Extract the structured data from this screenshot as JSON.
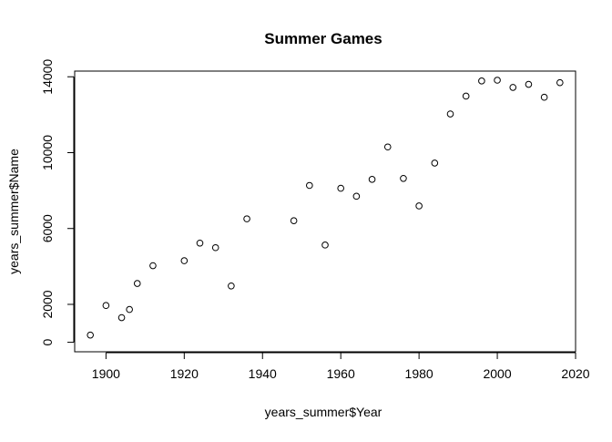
{
  "chart_data": {
    "type": "scatter",
    "title": "Summer Games",
    "xlabel": "years_summer$Year",
    "ylabel": "years_summer$Name",
    "xlim": [
      1892,
      2020
    ],
    "ylim": [
      -500,
      14300
    ],
    "x_ticks": [
      1900,
      1920,
      1940,
      1960,
      1980,
      2000,
      2020
    ],
    "y_ticks": [
      0,
      2000,
      6000,
      10000,
      14000
    ],
    "grid": false,
    "marker": "open-circle",
    "series": [
      {
        "points": [
          {
            "x": 1896,
            "y": 380
          },
          {
            "x": 1900,
            "y": 1940
          },
          {
            "x": 1904,
            "y": 1300
          },
          {
            "x": 1906,
            "y": 1730
          },
          {
            "x": 1908,
            "y": 3100
          },
          {
            "x": 1912,
            "y": 4040
          },
          {
            "x": 1920,
            "y": 4300
          },
          {
            "x": 1924,
            "y": 5230
          },
          {
            "x": 1928,
            "y": 4990
          },
          {
            "x": 1932,
            "y": 2970
          },
          {
            "x": 1936,
            "y": 6510
          },
          {
            "x": 1948,
            "y": 6410
          },
          {
            "x": 1952,
            "y": 8270
          },
          {
            "x": 1956,
            "y": 5130
          },
          {
            "x": 1960,
            "y": 8120
          },
          {
            "x": 1964,
            "y": 7700
          },
          {
            "x": 1968,
            "y": 8590
          },
          {
            "x": 1972,
            "y": 10300
          },
          {
            "x": 1976,
            "y": 8640
          },
          {
            "x": 1980,
            "y": 7190
          },
          {
            "x": 1984,
            "y": 9450
          },
          {
            "x": 1988,
            "y": 12040
          },
          {
            "x": 1992,
            "y": 12980
          },
          {
            "x": 1996,
            "y": 13780
          },
          {
            "x": 2000,
            "y": 13820
          },
          {
            "x": 2004,
            "y": 13440
          },
          {
            "x": 2008,
            "y": 13600
          },
          {
            "x": 2012,
            "y": 12920
          },
          {
            "x": 2016,
            "y": 13690
          }
        ]
      }
    ]
  }
}
